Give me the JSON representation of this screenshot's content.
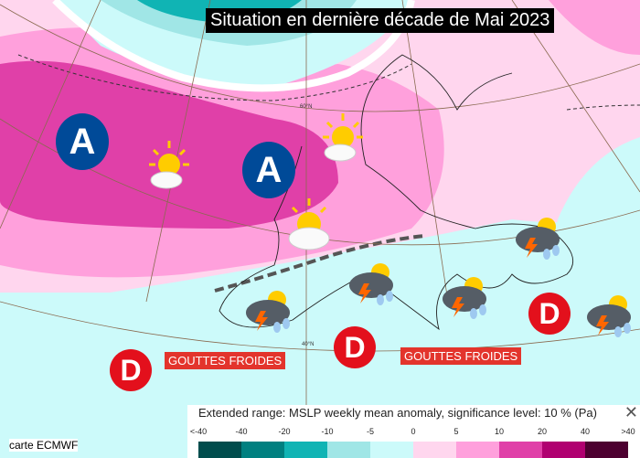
{
  "title": "Situation en dernière décade de Mai 2023",
  "highs": [
    {
      "label": "A"
    },
    {
      "label": "A"
    }
  ],
  "lows": [
    {
      "label": "D"
    },
    {
      "label": "D"
    },
    {
      "label": "D"
    }
  ],
  "tags": [
    "GOUTTES FROIDES",
    "GOUTTES FROIDES"
  ],
  "graticule_labels": [
    "60°N",
    "40°N"
  ],
  "credit": "carte ECMWF",
  "legend": {
    "title": "Extended range: MSLP weekly mean anomaly, significance level: 10 % (Pa)",
    "close": "✕",
    "ticks": [
      "<-40",
      "-40",
      "-20",
      "-10",
      "-5",
      "0",
      "5",
      "10",
      "20",
      "40",
      ">40"
    ],
    "colors": [
      "#004d4d",
      "#008080",
      "#10b4b4",
      "#a0e6e6",
      "#ccfafa",
      "#ffd6ee",
      "#ffa0dc",
      "#e040a8",
      "#b00070",
      "#4d0030"
    ]
  },
  "icons": {
    "sun_cloud": "sun-behind-cloud",
    "storm": "thunderstorm-rain",
    "high": "anticyclone",
    "low": "depression"
  }
}
